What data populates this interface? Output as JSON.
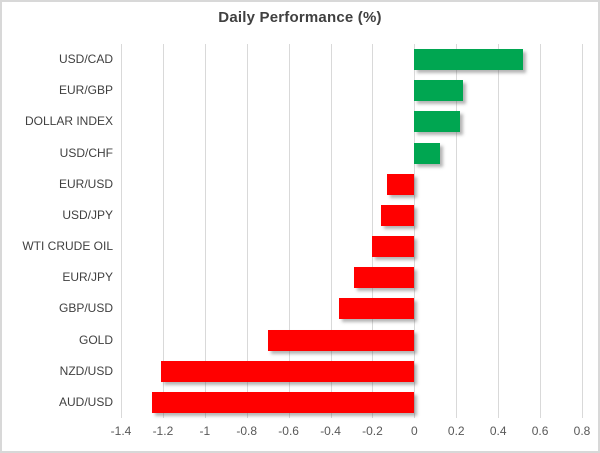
{
  "title": "Daily Performance (%)",
  "colors": {
    "positive_bar": "#00A651",
    "negative_bar": "#FF0000",
    "gridline": "#D9D9D9",
    "title_text": "#404040",
    "category_text": "#404040",
    "tick_text": "#595959",
    "frame_border": "#D8D8D8",
    "background": "#FFFFFF"
  },
  "chart_data": {
    "type": "bar",
    "orientation": "horizontal",
    "title": "Daily Performance (%)",
    "categories": [
      "USD/CAD",
      "EUR/GBP",
      "DOLLAR INDEX",
      "USD/CHF",
      "EUR/USD",
      "USD/JPY",
      "WTI CRUDE OIL",
      "EUR/JPY",
      "GBP/USD",
      "GOLD",
      "NZD/USD",
      "AUD/USD"
    ],
    "values": [
      0.52,
      0.23,
      0.22,
      0.12,
      -0.13,
      -0.16,
      -0.2,
      -0.29,
      -0.36,
      -0.7,
      -1.21,
      -1.25
    ],
    "xlim": [
      -1.4,
      0.8
    ],
    "xticks": [
      -1.4,
      -1.2,
      -1,
      -0.8,
      -0.6,
      -0.4,
      -0.2,
      0,
      0.2,
      0.4,
      0.6,
      0.8
    ],
    "xtick_labels": [
      "-1.4",
      "-1.2",
      "-1",
      "-0.8",
      "-0.6",
      "-0.4",
      "-0.2",
      "0",
      "0.2",
      "0.4",
      "0.6",
      "0.8"
    ],
    "grid": true,
    "legend": false
  }
}
